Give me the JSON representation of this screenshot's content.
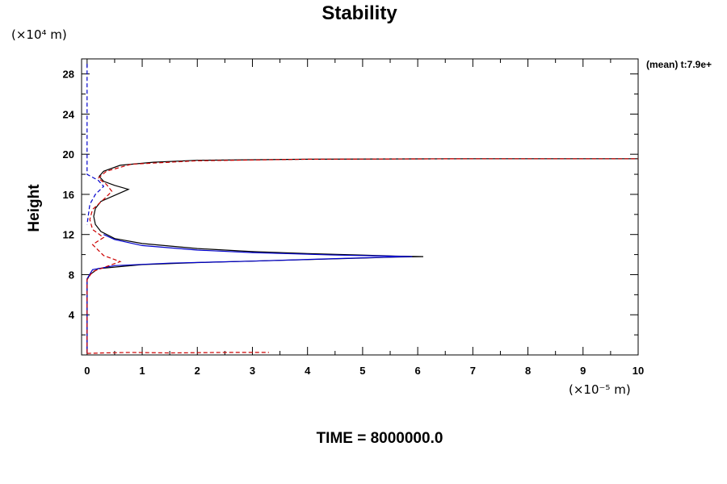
{
  "chart_data": {
    "type": "line",
    "title": "Stability",
    "ylabel": "Height",
    "xlabel": "",
    "y_units": "(×10⁴ m)",
    "x_units": "(×10⁻⁵ m)",
    "annotation": "(mean) t:7.9e+",
    "footer": "TIME = 8000000.0",
    "xlim": [
      -0.1,
      10
    ],
    "ylim": [
      0,
      29.5
    ],
    "x_ticks": [
      "0",
      "1",
      "2",
      "3",
      "4",
      "5",
      "6",
      "7",
      "8",
      "9",
      "10"
    ],
    "x_tick_values": [
      0,
      1,
      2,
      3,
      4,
      5,
      6,
      7,
      8,
      9,
      10
    ],
    "y_ticks": [
      "4",
      "8",
      "12",
      "16",
      "20",
      "24",
      "28"
    ],
    "y_tick_values": [
      4,
      8,
      12,
      16,
      20,
      24,
      28
    ],
    "grid": false,
    "series": [
      {
        "color": "#000000",
        "style": "solid",
        "points": [
          [
            0.0,
            0.2
          ],
          [
            0.0,
            7.5
          ],
          [
            0.05,
            8.0
          ],
          [
            0.2,
            8.6
          ],
          [
            1.0,
            9.0
          ],
          [
            2.0,
            9.2
          ],
          [
            3.0,
            9.35
          ],
          [
            4.0,
            9.5
          ],
          [
            5.0,
            9.65
          ],
          [
            5.6,
            9.75
          ],
          [
            6.1,
            9.8
          ],
          [
            5.6,
            9.85
          ],
          [
            5.0,
            9.95
          ],
          [
            4.0,
            10.1
          ],
          [
            3.0,
            10.3
          ],
          [
            2.0,
            10.6
          ],
          [
            1.0,
            11.1
          ],
          [
            0.5,
            11.6
          ],
          [
            0.25,
            12.3
          ],
          [
            0.15,
            13.0
          ],
          [
            0.12,
            13.8
          ],
          [
            0.15,
            14.6
          ],
          [
            0.25,
            15.3
          ],
          [
            0.5,
            15.9
          ],
          [
            0.75,
            16.5
          ],
          [
            0.5,
            16.9
          ],
          [
            0.3,
            17.3
          ],
          [
            0.22,
            17.8
          ],
          [
            0.3,
            18.3
          ],
          [
            0.6,
            18.9
          ],
          [
            1.2,
            19.2
          ],
          [
            2.0,
            19.4
          ],
          [
            4.0,
            19.5
          ],
          [
            7.0,
            19.55
          ],
          [
            10.0,
            19.55
          ]
        ]
      },
      {
        "color": "#0000cc",
        "style": "solid",
        "points": [
          [
            0.0,
            0.2
          ],
          [
            0.0,
            7.6
          ],
          [
            0.1,
            8.5
          ],
          [
            0.5,
            8.9
          ],
          [
            1.5,
            9.15
          ],
          [
            3.0,
            9.35
          ],
          [
            4.5,
            9.6
          ],
          [
            5.5,
            9.75
          ],
          [
            5.9,
            9.8
          ],
          [
            5.5,
            9.85
          ],
          [
            4.5,
            9.95
          ],
          [
            3.0,
            10.2
          ],
          [
            2.0,
            10.45
          ],
          [
            1.0,
            10.9
          ],
          [
            0.5,
            11.5
          ],
          [
            0.3,
            12.0
          ]
        ]
      },
      {
        "color": "#cc0000",
        "style": "dashed",
        "points": [
          [
            0.0,
            0.2
          ],
          [
            0.0,
            7.5
          ],
          [
            0.1,
            8.3
          ],
          [
            0.6,
            9.3
          ],
          [
            0.3,
            9.9
          ],
          [
            0.1,
            11.0
          ],
          [
            0.3,
            11.7
          ],
          [
            0.1,
            12.5
          ],
          [
            0.05,
            13.5
          ],
          [
            0.1,
            14.5
          ],
          [
            0.3,
            15.5
          ],
          [
            0.45,
            16.3
          ],
          [
            0.35,
            17.0
          ],
          [
            0.2,
            17.6
          ],
          [
            0.35,
            18.3
          ],
          [
            0.8,
            19.0
          ],
          [
            2.0,
            19.35
          ],
          [
            4.0,
            19.5
          ],
          [
            7.0,
            19.55
          ],
          [
            10.0,
            19.55
          ]
        ]
      },
      {
        "color": "#0000cc",
        "style": "dashed",
        "points": [
          [
            0.0,
            29.0
          ],
          [
            0.0,
            18.0
          ],
          [
            0.2,
            17.4
          ],
          [
            0.3,
            16.8
          ],
          [
            0.15,
            16.0
          ],
          [
            0.05,
            15.0
          ],
          [
            0.0,
            13.0
          ]
        ]
      },
      {
        "color": "#cc0000",
        "style": "dashed",
        "points": [
          [
            0.0,
            0.15
          ],
          [
            0.3,
            0.2
          ],
          [
            0.8,
            0.25
          ],
          [
            1.5,
            0.2
          ],
          [
            2.5,
            0.25
          ],
          [
            3.3,
            0.25
          ]
        ]
      }
    ]
  }
}
